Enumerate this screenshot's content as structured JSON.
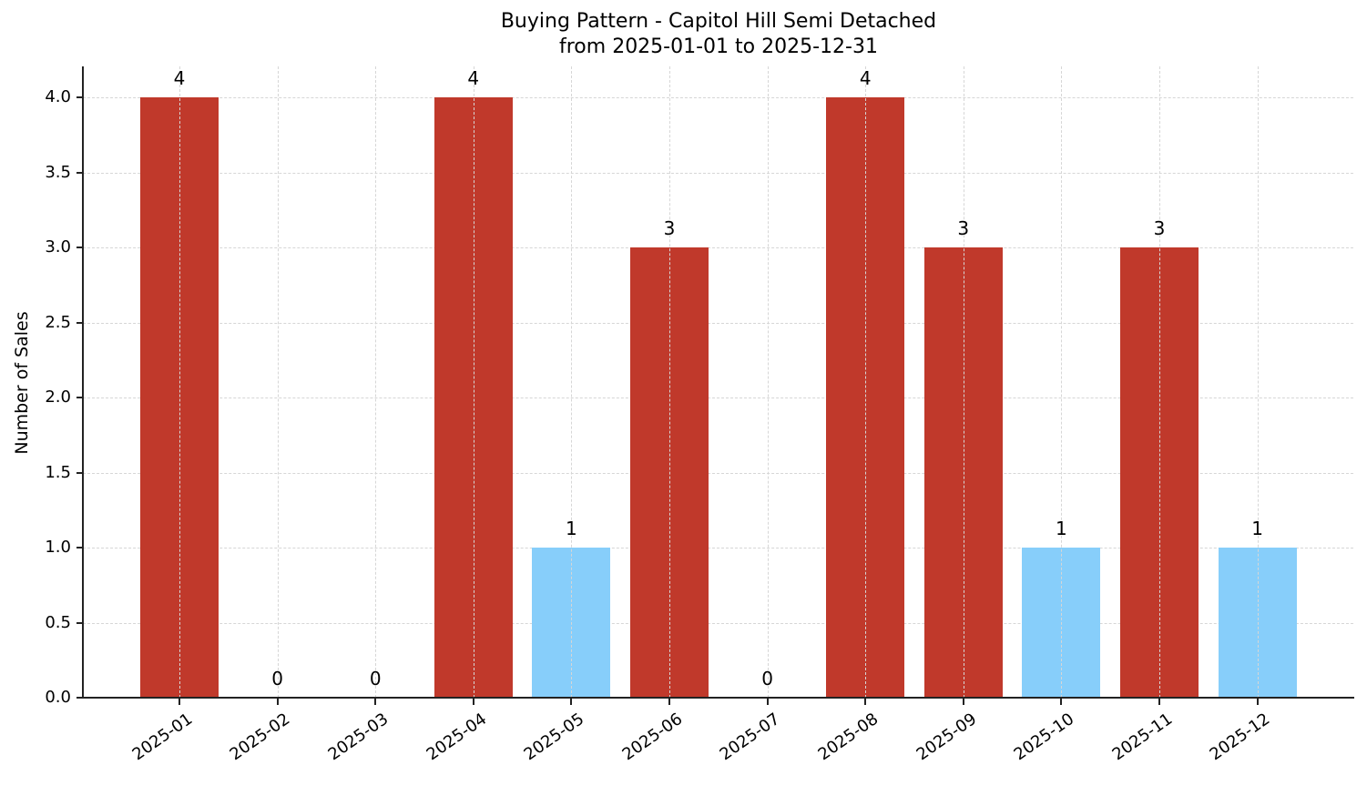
{
  "chart_data": {
    "type": "bar",
    "title": "Buying Pattern - Capitol Hill Semi Detached",
    "subtitle": "from 2025-01-01 to 2025-12-31",
    "xlabel": "",
    "ylabel": "Number of Sales",
    "categories": [
      "2025-01",
      "2025-02",
      "2025-03",
      "2025-04",
      "2025-05",
      "2025-06",
      "2025-07",
      "2025-08",
      "2025-09",
      "2025-10",
      "2025-11",
      "2025-12"
    ],
    "values": [
      4,
      0,
      0,
      4,
      1,
      3,
      0,
      4,
      3,
      1,
      3,
      1
    ],
    "bar_colors": [
      "#c0392b",
      "#c0392b",
      "#c0392b",
      "#c0392b",
      "#87cefa",
      "#c0392b",
      "#c0392b",
      "#c0392b",
      "#c0392b",
      "#87cefa",
      "#c0392b",
      "#87cefa"
    ],
    "data_labels": [
      "4",
      "0",
      "0",
      "4",
      "1",
      "3",
      "0",
      "4",
      "3",
      "1",
      "3",
      "1"
    ],
    "ylim": [
      0,
      4.2
    ],
    "yticks": [
      "0.0",
      "0.5",
      "1.0",
      "1.5",
      "2.0",
      "2.5",
      "3.0",
      "3.5",
      "4.0"
    ],
    "grid": true,
    "grid_style": "dashed",
    "legend": null,
    "colors": {
      "high": "#c0392b",
      "low": "#87cefa"
    }
  }
}
